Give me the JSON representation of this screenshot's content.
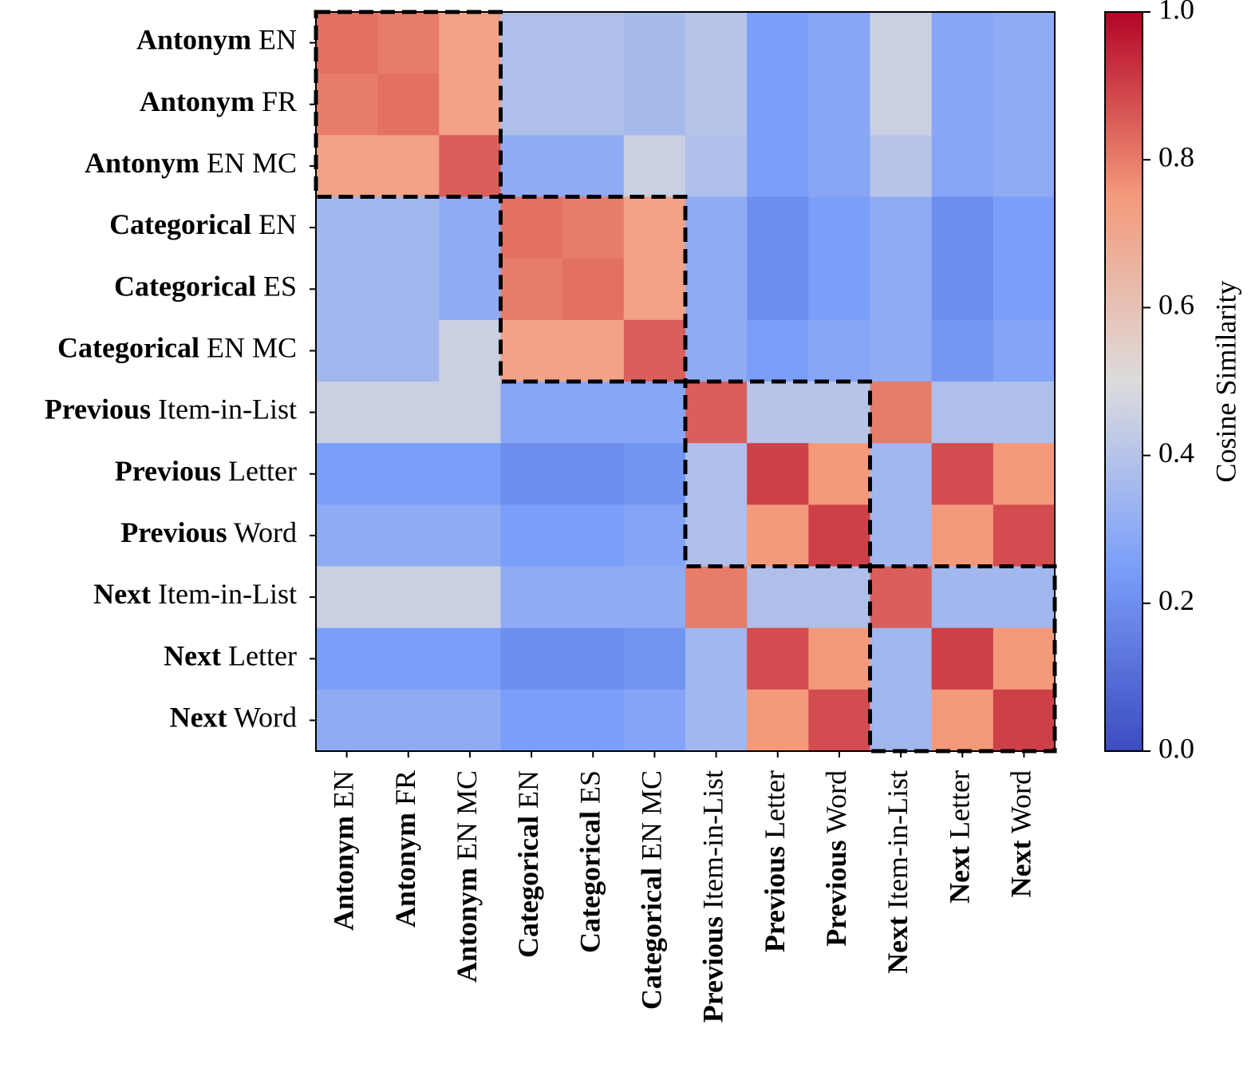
{
  "chart_data": {
    "type": "heatmap",
    "categories": [
      [
        "Antonym",
        "EN"
      ],
      [
        "Antonym",
        "FR"
      ],
      [
        "Antonym",
        "EN MC"
      ],
      [
        "Categorical",
        "EN"
      ],
      [
        "Categorical",
        "ES"
      ],
      [
        "Categorical",
        "EN MC"
      ],
      [
        "Previous",
        "Item-in-List"
      ],
      [
        "Previous",
        "Letter"
      ],
      [
        "Previous",
        "Word"
      ],
      [
        "Next",
        "Item-in-List"
      ],
      [
        "Next",
        "Letter"
      ],
      [
        "Next",
        "Word"
      ]
    ],
    "values": [
      [
        0.82,
        0.8,
        0.72,
        0.38,
        0.38,
        0.36,
        0.4,
        0.25,
        0.28,
        0.45,
        0.28,
        0.3
      ],
      [
        0.8,
        0.82,
        0.72,
        0.38,
        0.38,
        0.36,
        0.4,
        0.25,
        0.28,
        0.45,
        0.28,
        0.3
      ],
      [
        0.72,
        0.72,
        0.85,
        0.3,
        0.3,
        0.45,
        0.38,
        0.25,
        0.28,
        0.4,
        0.28,
        0.3
      ],
      [
        0.35,
        0.35,
        0.3,
        0.82,
        0.8,
        0.72,
        0.3,
        0.2,
        0.25,
        0.3,
        0.2,
        0.25
      ],
      [
        0.35,
        0.35,
        0.3,
        0.8,
        0.82,
        0.72,
        0.3,
        0.2,
        0.25,
        0.3,
        0.2,
        0.25
      ],
      [
        0.35,
        0.35,
        0.45,
        0.72,
        0.72,
        0.85,
        0.3,
        0.25,
        0.28,
        0.3,
        0.23,
        0.27
      ],
      [
        0.45,
        0.45,
        0.45,
        0.28,
        0.28,
        0.28,
        0.85,
        0.4,
        0.4,
        0.8,
        0.38,
        0.38
      ],
      [
        0.25,
        0.25,
        0.25,
        0.2,
        0.2,
        0.22,
        0.38,
        0.9,
        0.75,
        0.35,
        0.88,
        0.75
      ],
      [
        0.3,
        0.3,
        0.3,
        0.25,
        0.25,
        0.27,
        0.38,
        0.75,
        0.9,
        0.35,
        0.75,
        0.88
      ],
      [
        0.45,
        0.45,
        0.45,
        0.3,
        0.3,
        0.3,
        0.8,
        0.38,
        0.38,
        0.85,
        0.35,
        0.35
      ],
      [
        0.25,
        0.25,
        0.25,
        0.2,
        0.2,
        0.22,
        0.35,
        0.88,
        0.75,
        0.35,
        0.9,
        0.75
      ],
      [
        0.3,
        0.3,
        0.3,
        0.25,
        0.25,
        0.27,
        0.35,
        0.75,
        0.88,
        0.35,
        0.75,
        0.9
      ]
    ],
    "colormap": [
      "#3b4cc0",
      "#7b9ff9",
      "#dddcdc",
      "#f49a7b",
      "#b40426"
    ],
    "highlight_groups": [
      [
        0,
        3
      ],
      [
        3,
        6
      ],
      [
        6,
        9
      ],
      [
        9,
        12
      ]
    ],
    "colorbar_label": "Cosine Similarity",
    "clim": [
      0,
      1
    ],
    "cticks": [
      {
        "value": 0,
        "label": "0.0"
      },
      {
        "value": 0.2,
        "label": "0.2"
      },
      {
        "value": 0.4,
        "label": "0.4"
      },
      {
        "value": 0.6,
        "label": "0.6"
      },
      {
        "value": 0.8,
        "label": "0.8"
      },
      {
        "value": 1,
        "label": "1.0"
      }
    ]
  }
}
